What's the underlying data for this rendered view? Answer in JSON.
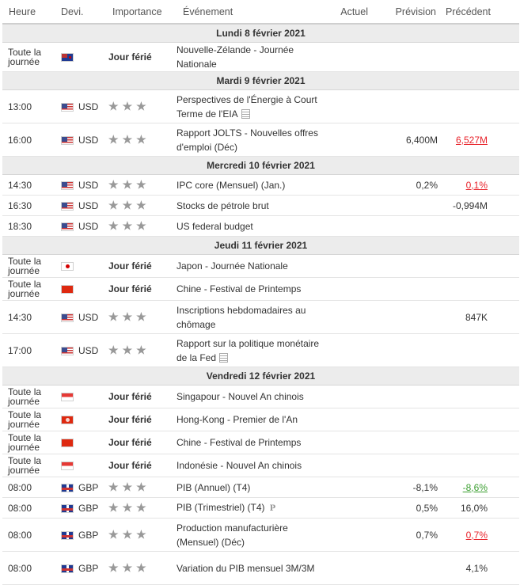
{
  "headers": {
    "time": "Heure",
    "currency": "Devi.",
    "importance": "Importance",
    "event": "Événement",
    "actual": "Actuel",
    "forecast": "Prévision",
    "previous": "Précédent"
  },
  "days": [
    {
      "label": "Lundi 8 février 2021",
      "rows": [
        {
          "time": "Toute la journée",
          "flag": "nz",
          "flag_icon": "new-zealand-flag-icon",
          "currency": "",
          "holiday": "Jour férié",
          "event": "Nouvelle-Zélande - Journée Nationale",
          "actual": "",
          "forecast": "",
          "previous": "",
          "previous_color": ""
        }
      ]
    },
    {
      "label": "Mardi 9 février 2021",
      "rows": [
        {
          "time": "13:00",
          "flag": "us",
          "flag_icon": "usa-flag-icon",
          "currency": "USD",
          "stars": 3,
          "event": "Perspectives de l'Énergie à Court Terme de l'EIA",
          "event_icon": "document-icon",
          "actual": "",
          "forecast": "",
          "previous": "",
          "tall": true
        },
        {
          "time": "16:00",
          "flag": "us",
          "flag_icon": "usa-flag-icon",
          "currency": "USD",
          "stars": 3,
          "event": "Rapport JOLTS - Nouvelles offres d'emploi (Déc)",
          "actual": "",
          "forecast": "6,400M",
          "previous": "6,527M",
          "previous_color": "neg",
          "tall": true
        }
      ]
    },
    {
      "label": "Mercredi 10 février 2021",
      "rows": [
        {
          "time": "14:30",
          "flag": "us",
          "flag_icon": "usa-flag-icon",
          "currency": "USD",
          "stars": 3,
          "event": "IPC core (Mensuel) (Jan.)",
          "actual": "",
          "forecast": "0,2%",
          "previous": "0,1%",
          "previous_color": "neg"
        },
        {
          "time": "16:30",
          "flag": "us",
          "flag_icon": "usa-flag-icon",
          "currency": "USD",
          "stars": 3,
          "event": "Stocks de pétrole brut",
          "actual": "",
          "forecast": "",
          "previous": "-0,994M",
          "previous_color": ""
        },
        {
          "time": "18:30",
          "flag": "us",
          "flag_icon": "usa-flag-icon",
          "currency": "USD",
          "stars": 3,
          "event": "US federal budget",
          "actual": "",
          "forecast": "",
          "previous": "",
          "previous_color": ""
        }
      ]
    },
    {
      "label": "Jeudi 11 février 2021",
      "rows": [
        {
          "time": "Toute la journée",
          "flag": "jp",
          "flag_icon": "japan-flag-icon",
          "currency": "",
          "holiday": "Jour férié",
          "event": "Japon - Journée Nationale",
          "actual": "",
          "forecast": "",
          "previous": ""
        },
        {
          "time": "Toute la journée",
          "flag": "cn",
          "flag_icon": "china-flag-icon",
          "currency": "",
          "holiday": "Jour férié",
          "event": "Chine - Festival de Printemps",
          "actual": "",
          "forecast": "",
          "previous": ""
        },
        {
          "time": "14:30",
          "flag": "us",
          "flag_icon": "usa-flag-icon",
          "currency": "USD",
          "stars": 3,
          "event": "Inscriptions hebdomadaires au chômage",
          "actual": "",
          "forecast": "",
          "previous": "847K",
          "previous_color": "",
          "tall": true
        },
        {
          "time": "17:00",
          "flag": "us",
          "flag_icon": "usa-flag-icon",
          "currency": "USD",
          "stars": 3,
          "event": "Rapport sur la politique monétaire de la Fed",
          "event_icon": "document-icon",
          "actual": "",
          "forecast": "",
          "previous": "",
          "tall": true
        }
      ]
    },
    {
      "label": "Vendredi 12 février 2021",
      "rows": [
        {
          "time": "Toute la journée",
          "flag": "sg",
          "flag_icon": "singapore-flag-icon",
          "currency": "",
          "holiday": "Jour férié",
          "event": "Singapour - Nouvel An chinois",
          "actual": "",
          "forecast": "",
          "previous": ""
        },
        {
          "time": "Toute la journée",
          "flag": "hk",
          "flag_icon": "hong-kong-flag-icon",
          "currency": "",
          "holiday": "Jour férié",
          "event": "Hong-Kong - Premier de l'An",
          "actual": "",
          "forecast": "",
          "previous": ""
        },
        {
          "time": "Toute la journée",
          "flag": "cn",
          "flag_icon": "china-flag-icon",
          "currency": "",
          "holiday": "Jour férié",
          "event": "Chine - Festival de Printemps",
          "actual": "",
          "forecast": "",
          "previous": ""
        },
        {
          "time": "Toute la journée",
          "flag": "id",
          "flag_icon": "indonesia-flag-icon",
          "currency": "",
          "holiday": "Jour férié",
          "event": "Indonésie - Nouvel An chinois",
          "actual": "",
          "forecast": "",
          "previous": ""
        },
        {
          "time": "08:00",
          "flag": "gb",
          "flag_icon": "uk-flag-icon",
          "currency": "GBP",
          "stars": 3,
          "event": "PIB (Annuel) (T4)",
          "actual": "",
          "forecast": "-8,1%",
          "previous": "-8,6%",
          "previous_color": "pos"
        },
        {
          "time": "08:00",
          "flag": "gb",
          "flag_icon": "uk-flag-icon",
          "currency": "GBP",
          "stars": 3,
          "event": "PIB (Trimestriel) (T4)",
          "event_icon": "preliminary-icon",
          "actual": "",
          "forecast": "0,5%",
          "previous": "16,0%",
          "previous_color": ""
        },
        {
          "time": "08:00",
          "flag": "gb",
          "flag_icon": "uk-flag-icon",
          "currency": "GBP",
          "stars": 3,
          "event": "Production manufacturière (Mensuel) (Déc)",
          "actual": "",
          "forecast": "0,7%",
          "previous": "0,7%",
          "previous_color": "neg",
          "tall": true
        },
        {
          "time": "08:00",
          "flag": "gb",
          "flag_icon": "uk-flag-icon",
          "currency": "GBP",
          "stars": 3,
          "event": "Variation du PIB mensuel 3M/3M",
          "actual": "",
          "forecast": "",
          "previous": "4,1%",
          "previous_color": "",
          "tall": true
        }
      ]
    }
  ],
  "preliminary_symbol": "P",
  "star_glyph": "★"
}
